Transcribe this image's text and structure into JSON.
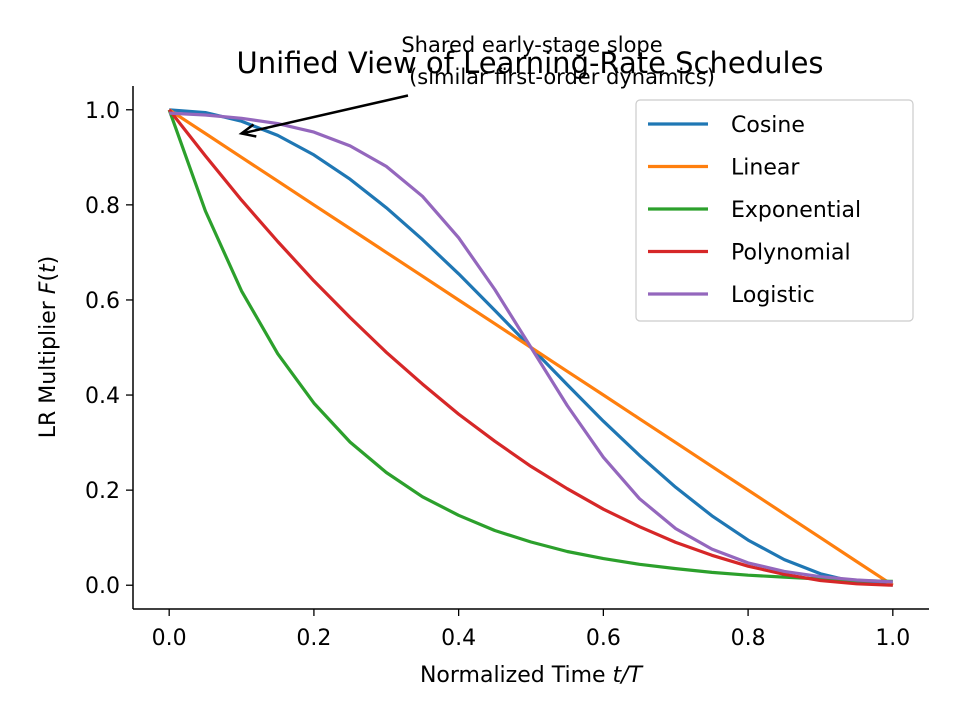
{
  "chart_data": {
    "type": "line",
    "title": "Unified View of Learning-Rate Schedules",
    "xlabel": "Normalized Time t/T",
    "ylabel": "LR Multiplier F(t)",
    "xlim": [
      -0.05,
      1.05
    ],
    "ylim": [
      -0.05,
      1.05
    ],
    "xticks": [
      "0.0",
      "0.2",
      "0.4",
      "0.6",
      "0.8",
      "1.0"
    ],
    "yticks": [
      "0.0",
      "0.2",
      "0.4",
      "0.6",
      "0.8",
      "1.0"
    ],
    "grid": false,
    "legend_position": "upper right",
    "x": [
      0.0,
      0.05,
      0.1,
      0.15,
      0.2,
      0.25,
      0.3,
      0.35,
      0.4,
      0.45,
      0.5,
      0.55,
      0.6,
      0.65,
      0.7,
      0.75,
      0.8,
      0.85,
      0.9,
      0.95,
      1.0
    ],
    "series": [
      {
        "name": "Cosine",
        "color": "#1f77b4",
        "values": [
          1.0,
          0.994,
          0.976,
          0.946,
          0.905,
          0.854,
          0.794,
          0.727,
          0.655,
          0.578,
          0.5,
          0.422,
          0.345,
          0.273,
          0.206,
          0.146,
          0.095,
          0.054,
          0.024,
          0.006,
          0.0
        ]
      },
      {
        "name": "Linear",
        "color": "#ff7f0e",
        "values": [
          1.0,
          0.95,
          0.9,
          0.85,
          0.8,
          0.75,
          0.7,
          0.65,
          0.6,
          0.55,
          0.5,
          0.45,
          0.4,
          0.35,
          0.3,
          0.25,
          0.2,
          0.15,
          0.1,
          0.05,
          0.0
        ]
      },
      {
        "name": "Exponential",
        "color": "#2ca02c",
        "values": [
          1.0,
          0.787,
          0.619,
          0.487,
          0.383,
          0.301,
          0.237,
          0.186,
          0.147,
          0.115,
          0.091,
          0.071,
          0.056,
          0.044,
          0.035,
          0.027,
          0.021,
          0.017,
          0.013,
          0.01,
          0.008
        ]
      },
      {
        "name": "Polynomial",
        "color": "#d62728",
        "values": [
          1.0,
          0.903,
          0.81,
          0.723,
          0.64,
          0.563,
          0.49,
          0.423,
          0.36,
          0.303,
          0.25,
          0.203,
          0.16,
          0.123,
          0.09,
          0.063,
          0.04,
          0.023,
          0.01,
          0.003,
          0.0
        ]
      },
      {
        "name": "Logistic",
        "color": "#9467bd",
        "values": [
          0.993,
          0.989,
          0.982,
          0.971,
          0.953,
          0.924,
          0.881,
          0.818,
          0.731,
          0.622,
          0.5,
          0.378,
          0.269,
          0.182,
          0.119,
          0.076,
          0.047,
          0.029,
          0.018,
          0.011,
          0.007
        ]
      }
    ],
    "annotation": {
      "text_line1": "Shared early-stage slope",
      "text_line2": "(similar first-order dynamics)",
      "point": [
        0.1,
        0.95
      ],
      "text_anchor": [
        0.33,
        1.03
      ]
    }
  }
}
